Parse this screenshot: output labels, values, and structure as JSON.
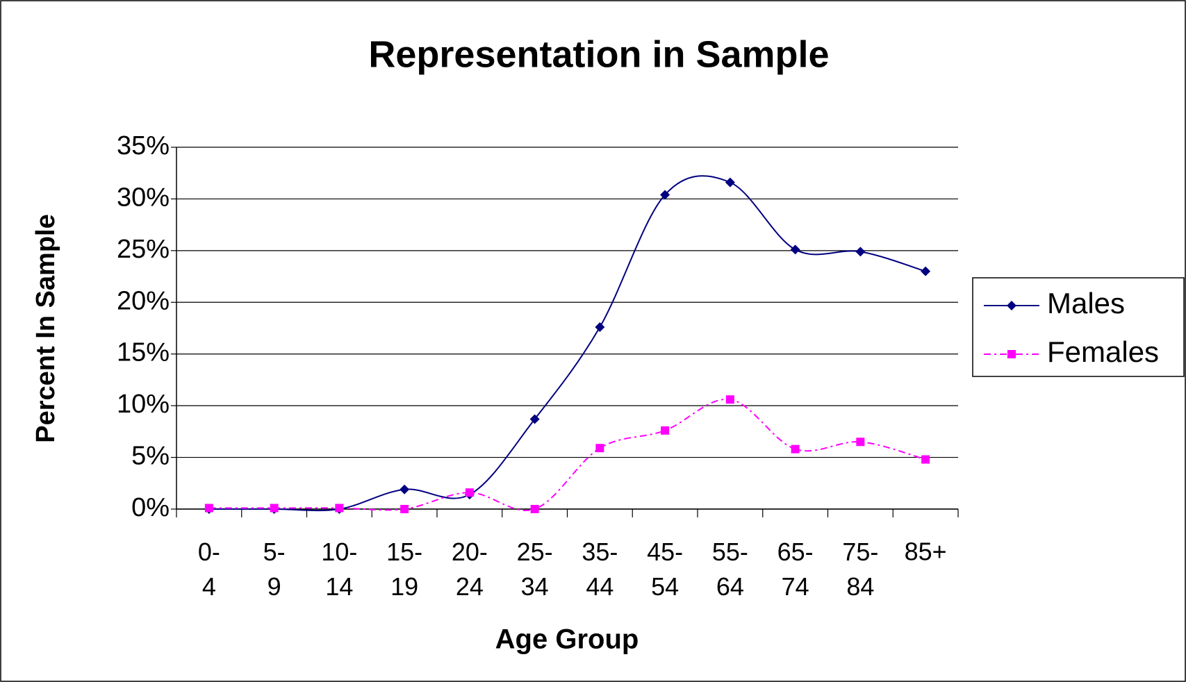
{
  "chart_data": {
    "type": "line",
    "title": "Representation in Sample",
    "xlabel": "Age Group",
    "ylabel": "Percent In Sample",
    "categories": [
      "0-4",
      "5-9",
      "10-14",
      "15-19",
      "20-24",
      "25-34",
      "35-44",
      "45-54",
      "55-64",
      "65-74",
      "75-84",
      "85+"
    ],
    "series": [
      {
        "name": "Males",
        "color": "#000080",
        "marker": "diamond",
        "values": [
          0,
          0,
          0,
          1.9,
          1.4,
          8.7,
          17.6,
          30.4,
          31.6,
          25.1,
          24.9,
          23.0
        ]
      },
      {
        "name": "Females",
        "color": "#ff00ff",
        "marker": "square",
        "dash": "dashdot",
        "values": [
          0.1,
          0.1,
          0.1,
          0,
          1.6,
          0,
          5.9,
          7.6,
          10.6,
          5.8,
          6.5,
          4.8
        ]
      }
    ],
    "ylim": [
      0,
      35
    ],
    "yticks": [
      {
        "value": 0,
        "label": "0%"
      },
      {
        "value": 5,
        "label": "5%"
      },
      {
        "value": 10,
        "label": "10%"
      },
      {
        "value": 15,
        "label": "15%"
      },
      {
        "value": 20,
        "label": "20%"
      },
      {
        "value": 25,
        "label": "25%"
      },
      {
        "value": 30,
        "label": "30%"
      },
      {
        "value": 35,
        "label": "35%"
      }
    ],
    "grid": true,
    "legend": "right"
  }
}
